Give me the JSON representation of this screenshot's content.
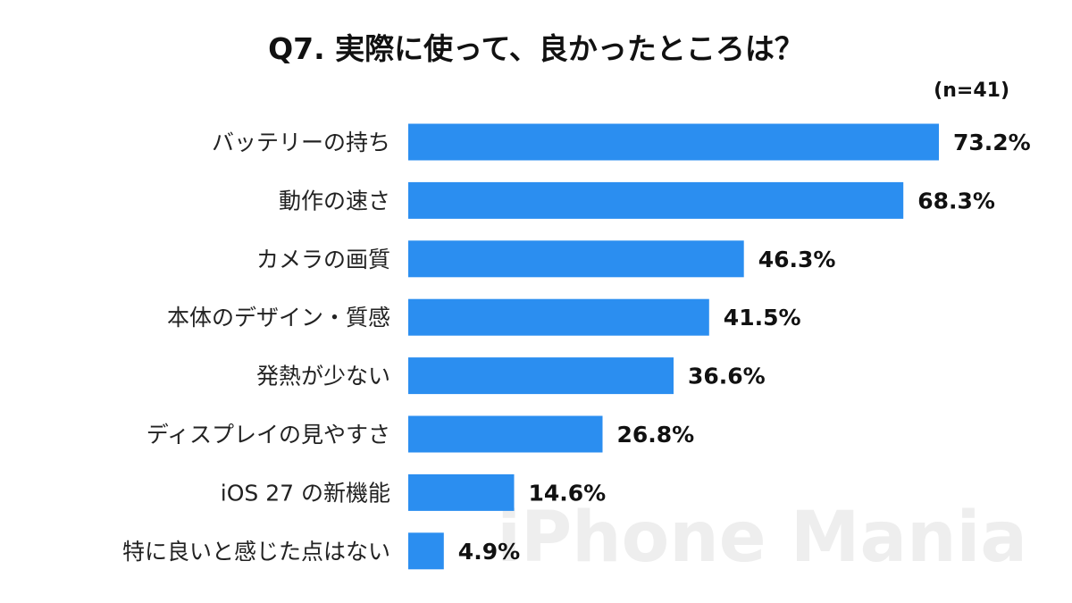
{
  "watermark": "iPhone Mania",
  "chart_data": {
    "type": "bar",
    "orientation": "horizontal",
    "title": "Q7. 実際に使って、良かったところは？",
    "sample_size": "(n=41)",
    "bar_color": "#2b8ef0",
    "xlim": [
      0,
      73.2
    ],
    "grid": false,
    "legend": "none",
    "categories": [
      "バッテリーの持ち",
      "動作の速さ",
      "カメラの画質",
      "本体のデザイン・質感",
      "発熱が少ない",
      "ディスプレイの見やすさ",
      "iOS 27 の新機能",
      "特に良いと感じた点はない"
    ],
    "values": [
      73.2,
      68.3,
      46.3,
      41.5,
      36.6,
      26.8,
      14.6,
      4.9
    ],
    "value_labels": [
      "73.2%",
      "68.3%",
      "46.3%",
      "41.5%",
      "36.6%",
      "26.8%",
      "14.6%",
      "4.9%"
    ]
  }
}
